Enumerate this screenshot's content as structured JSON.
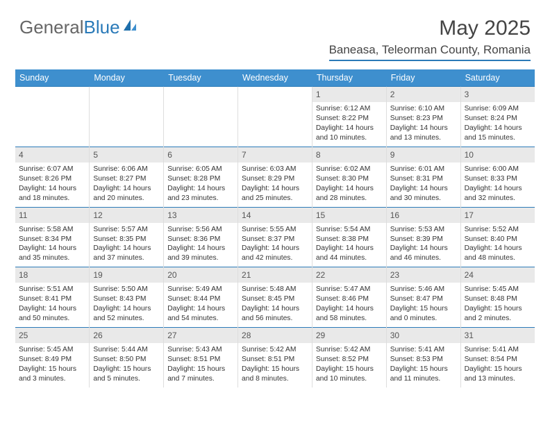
{
  "logo": {
    "part1": "General",
    "part2": "Blue"
  },
  "title": "May 2025",
  "location": "Baneasa, Teleorman County, Romania",
  "colors": {
    "header_bg": "#3e8fce",
    "border": "#2a7ab8",
    "daynum_bg": "#e9e9e9",
    "text": "#333333"
  },
  "weekdays": [
    "Sunday",
    "Monday",
    "Tuesday",
    "Wednesday",
    "Thursday",
    "Friday",
    "Saturday"
  ],
  "weeks": [
    [
      null,
      null,
      null,
      null,
      {
        "n": "1",
        "sr": "Sunrise: 6:12 AM",
        "ss": "Sunset: 8:22 PM",
        "dl": "Daylight: 14 hours and 10 minutes."
      },
      {
        "n": "2",
        "sr": "Sunrise: 6:10 AM",
        "ss": "Sunset: 8:23 PM",
        "dl": "Daylight: 14 hours and 13 minutes."
      },
      {
        "n": "3",
        "sr": "Sunrise: 6:09 AM",
        "ss": "Sunset: 8:24 PM",
        "dl": "Daylight: 14 hours and 15 minutes."
      }
    ],
    [
      {
        "n": "4",
        "sr": "Sunrise: 6:07 AM",
        "ss": "Sunset: 8:26 PM",
        "dl": "Daylight: 14 hours and 18 minutes."
      },
      {
        "n": "5",
        "sr": "Sunrise: 6:06 AM",
        "ss": "Sunset: 8:27 PM",
        "dl": "Daylight: 14 hours and 20 minutes."
      },
      {
        "n": "6",
        "sr": "Sunrise: 6:05 AM",
        "ss": "Sunset: 8:28 PM",
        "dl": "Daylight: 14 hours and 23 minutes."
      },
      {
        "n": "7",
        "sr": "Sunrise: 6:03 AM",
        "ss": "Sunset: 8:29 PM",
        "dl": "Daylight: 14 hours and 25 minutes."
      },
      {
        "n": "8",
        "sr": "Sunrise: 6:02 AM",
        "ss": "Sunset: 8:30 PM",
        "dl": "Daylight: 14 hours and 28 minutes."
      },
      {
        "n": "9",
        "sr": "Sunrise: 6:01 AM",
        "ss": "Sunset: 8:31 PM",
        "dl": "Daylight: 14 hours and 30 minutes."
      },
      {
        "n": "10",
        "sr": "Sunrise: 6:00 AM",
        "ss": "Sunset: 8:33 PM",
        "dl": "Daylight: 14 hours and 32 minutes."
      }
    ],
    [
      {
        "n": "11",
        "sr": "Sunrise: 5:58 AM",
        "ss": "Sunset: 8:34 PM",
        "dl": "Daylight: 14 hours and 35 minutes."
      },
      {
        "n": "12",
        "sr": "Sunrise: 5:57 AM",
        "ss": "Sunset: 8:35 PM",
        "dl": "Daylight: 14 hours and 37 minutes."
      },
      {
        "n": "13",
        "sr": "Sunrise: 5:56 AM",
        "ss": "Sunset: 8:36 PM",
        "dl": "Daylight: 14 hours and 39 minutes."
      },
      {
        "n": "14",
        "sr": "Sunrise: 5:55 AM",
        "ss": "Sunset: 8:37 PM",
        "dl": "Daylight: 14 hours and 42 minutes."
      },
      {
        "n": "15",
        "sr": "Sunrise: 5:54 AM",
        "ss": "Sunset: 8:38 PM",
        "dl": "Daylight: 14 hours and 44 minutes."
      },
      {
        "n": "16",
        "sr": "Sunrise: 5:53 AM",
        "ss": "Sunset: 8:39 PM",
        "dl": "Daylight: 14 hours and 46 minutes."
      },
      {
        "n": "17",
        "sr": "Sunrise: 5:52 AM",
        "ss": "Sunset: 8:40 PM",
        "dl": "Daylight: 14 hours and 48 minutes."
      }
    ],
    [
      {
        "n": "18",
        "sr": "Sunrise: 5:51 AM",
        "ss": "Sunset: 8:41 PM",
        "dl": "Daylight: 14 hours and 50 minutes."
      },
      {
        "n": "19",
        "sr": "Sunrise: 5:50 AM",
        "ss": "Sunset: 8:43 PM",
        "dl": "Daylight: 14 hours and 52 minutes."
      },
      {
        "n": "20",
        "sr": "Sunrise: 5:49 AM",
        "ss": "Sunset: 8:44 PM",
        "dl": "Daylight: 14 hours and 54 minutes."
      },
      {
        "n": "21",
        "sr": "Sunrise: 5:48 AM",
        "ss": "Sunset: 8:45 PM",
        "dl": "Daylight: 14 hours and 56 minutes."
      },
      {
        "n": "22",
        "sr": "Sunrise: 5:47 AM",
        "ss": "Sunset: 8:46 PM",
        "dl": "Daylight: 14 hours and 58 minutes."
      },
      {
        "n": "23",
        "sr": "Sunrise: 5:46 AM",
        "ss": "Sunset: 8:47 PM",
        "dl": "Daylight: 15 hours and 0 minutes."
      },
      {
        "n": "24",
        "sr": "Sunrise: 5:45 AM",
        "ss": "Sunset: 8:48 PM",
        "dl": "Daylight: 15 hours and 2 minutes."
      }
    ],
    [
      {
        "n": "25",
        "sr": "Sunrise: 5:45 AM",
        "ss": "Sunset: 8:49 PM",
        "dl": "Daylight: 15 hours and 3 minutes."
      },
      {
        "n": "26",
        "sr": "Sunrise: 5:44 AM",
        "ss": "Sunset: 8:50 PM",
        "dl": "Daylight: 15 hours and 5 minutes."
      },
      {
        "n": "27",
        "sr": "Sunrise: 5:43 AM",
        "ss": "Sunset: 8:51 PM",
        "dl": "Daylight: 15 hours and 7 minutes."
      },
      {
        "n": "28",
        "sr": "Sunrise: 5:42 AM",
        "ss": "Sunset: 8:51 PM",
        "dl": "Daylight: 15 hours and 8 minutes."
      },
      {
        "n": "29",
        "sr": "Sunrise: 5:42 AM",
        "ss": "Sunset: 8:52 PM",
        "dl": "Daylight: 15 hours and 10 minutes."
      },
      {
        "n": "30",
        "sr": "Sunrise: 5:41 AM",
        "ss": "Sunset: 8:53 PM",
        "dl": "Daylight: 15 hours and 11 minutes."
      },
      {
        "n": "31",
        "sr": "Sunrise: 5:41 AM",
        "ss": "Sunset: 8:54 PM",
        "dl": "Daylight: 15 hours and 13 minutes."
      }
    ]
  ]
}
